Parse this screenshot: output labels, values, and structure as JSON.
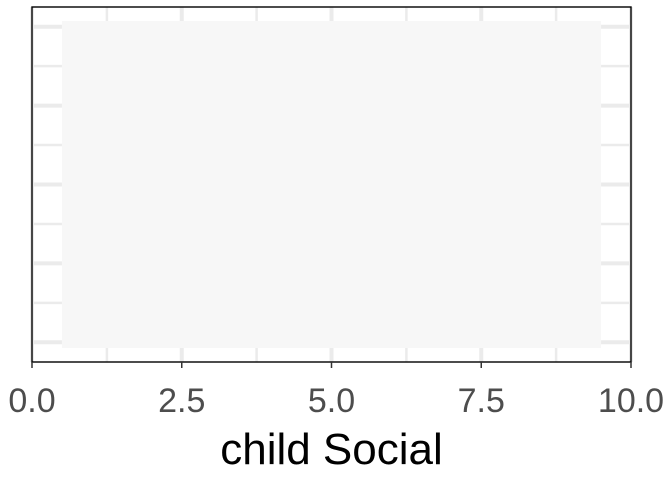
{
  "chart_data": {
    "type": "area",
    "title": "",
    "xlabel": "child Social",
    "ylabel": "",
    "xlim": [
      0,
      10
    ],
    "x_ticks": [
      {
        "value": 0,
        "label": "0.0"
      },
      {
        "value": 2.5,
        "label": "2.5"
      },
      {
        "value": 5,
        "label": "5.0"
      },
      {
        "value": 7.5,
        "label": "7.5"
      },
      {
        "value": 10,
        "label": "10.0"
      }
    ],
    "x_minor_ticks": [
      1.25,
      3.75,
      6.25,
      8.75
    ],
    "y_gridlines": 9,
    "y_tick_labels_shown": false,
    "grid": true,
    "filled_region": {
      "x_start": 0.5,
      "x_end": 9.5,
      "color": "#f7f7f7"
    },
    "colors": {
      "panel_border": "#000000",
      "grid": "#ebebeb",
      "fill": "#f7f7f7",
      "tick_text": "#4d4d4d"
    }
  }
}
